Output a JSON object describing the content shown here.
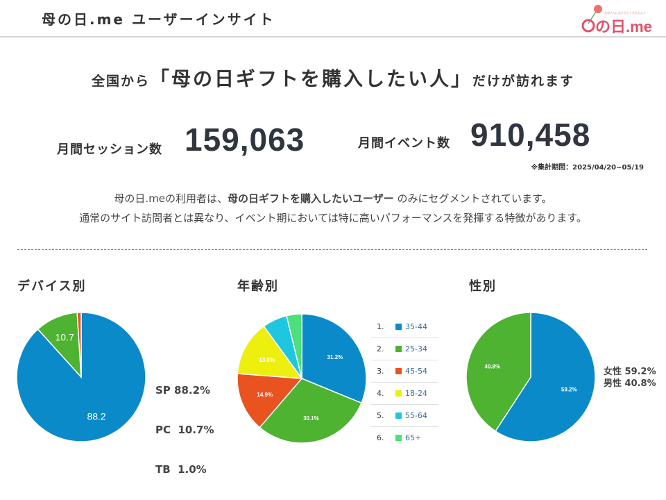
{
  "header": {
    "title": "母の日.me ユーザーインサイト",
    "logo_text": "母の日.me",
    "logo_tagline": "お母さんにありがとうを伝えよう"
  },
  "headline": {
    "prefix": "全国から",
    "emphasis": "「母の日ギフトを購入したい人」",
    "suffix": "だけが訪れます"
  },
  "metrics": [
    {
      "label": "月間セッション数",
      "value": "159,063"
    },
    {
      "label": "月間イベント数",
      "value": "910,458"
    }
  ],
  "note": "※集計期間：2025/04/20~05/19",
  "description": {
    "line1_pre": "母の日.meの利用者は、",
    "line1_bold": "母の日ギフトを購入したいユーザー",
    "line1_post": " のみにセグメントされています。",
    "line2": "通常のサイト訪問者とは異なり、イベント期においては特に高いパフォーマンスを発揮する特徴があります。"
  },
  "chart_data": [
    {
      "type": "pie",
      "title": "デバイス別",
      "categories": [
        "SP",
        "PC",
        "TB"
      ],
      "values": [
        88.2,
        10.7,
        1.0
      ],
      "data_labels": [
        "88.2",
        "10.7",
        ""
      ],
      "colors": [
        "#0a8ac8",
        "#4db331",
        "#e8531f"
      ],
      "legend": [
        "SP 88.2%",
        "PC  10.7%",
        "TB  1.0%"
      ],
      "legend_position": "right"
    },
    {
      "type": "pie",
      "title": "年齢別",
      "categories": [
        "35-44",
        "25-34",
        "45-54",
        "18-24",
        "55-64",
        "65+"
      ],
      "values": [
        31.2,
        30.1,
        14.9,
        13.8,
        6.2,
        3.8
      ],
      "data_labels": [
        "31.2%",
        "30.1%",
        "14.9%",
        "13.8%",
        "",
        ""
      ],
      "colors": [
        "#0a8ac8",
        "#4db331",
        "#e8531f",
        "#edef0f",
        "#1ec6e0",
        "#4be079"
      ],
      "legend": [
        "1.",
        "2.",
        "3.",
        "4.",
        "5.",
        "6."
      ],
      "legend_position": "right"
    },
    {
      "type": "pie",
      "title": "性別",
      "categories": [
        "女性",
        "男性"
      ],
      "values": [
        59.2,
        40.8
      ],
      "data_labels": [
        "59.2%",
        "40.8%"
      ],
      "colors": [
        "#0a8ac8",
        "#4db331"
      ],
      "legend": [
        "女性 59.2%",
        "男性 40.8%"
      ],
      "legend_position": "right"
    }
  ]
}
